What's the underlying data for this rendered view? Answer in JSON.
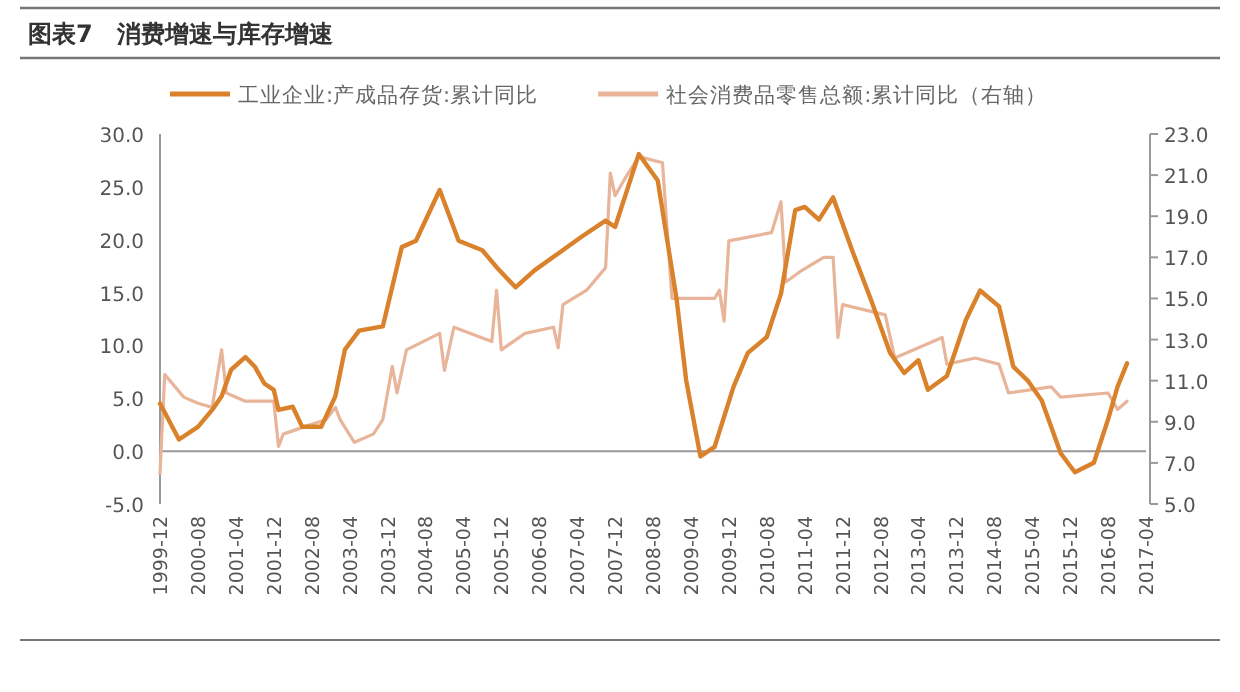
{
  "chart_data": {
    "type": "line",
    "title": "图表7　消费增速与库存增速",
    "legend": "top",
    "xlim": [
      "1999-12",
      "2017-04"
    ],
    "xticks": [
      "1999-12",
      "2000-08",
      "2001-04",
      "2001-12",
      "2002-08",
      "2003-04",
      "2003-12",
      "2004-08",
      "2005-04",
      "2005-12",
      "2006-08",
      "2007-04",
      "2007-12",
      "2008-08",
      "2009-04",
      "2009-12",
      "2010-08",
      "2011-04",
      "2011-12",
      "2012-08",
      "2013-04",
      "2013-12",
      "2014-08",
      "2015-04",
      "2015-12",
      "2016-08",
      "2017-04"
    ],
    "ylim": [
      -5,
      30
    ],
    "yticks": [
      {
        "value": -5,
        "label": "-5.0"
      },
      {
        "value": 0,
        "label": "0.0"
      },
      {
        "value": 5,
        "label": "5.0"
      },
      {
        "value": 10,
        "label": "10.0"
      },
      {
        "value": 15,
        "label": "15.0"
      },
      {
        "value": 20,
        "label": "20.0"
      },
      {
        "value": 25,
        "label": "25.0"
      },
      {
        "value": 30,
        "label": "30.0"
      }
    ],
    "y2lim": [
      5,
      23
    ],
    "y2ticks": [
      {
        "value": 5,
        "label": "5.0"
      },
      {
        "value": 7,
        "label": "7.0"
      },
      {
        "value": 9,
        "label": "9.0"
      },
      {
        "value": 11,
        "label": "11.0"
      },
      {
        "value": 13,
        "label": "13.0"
      },
      {
        "value": 15,
        "label": "15.0"
      },
      {
        "value": 17,
        "label": "17.0"
      },
      {
        "value": 19,
        "label": "19.0"
      },
      {
        "value": 21,
        "label": "21.0"
      },
      {
        "value": 23,
        "label": "23.0"
      }
    ],
    "series": [
      {
        "name": "工业企业:产成品存货:累计同比",
        "color": "#d9822b",
        "x": [
          "1999-12",
          "2000-04",
          "2000-08",
          "2000-11",
          "2001-01",
          "2001-03",
          "2001-06",
          "2001-08",
          "2001-10",
          "2001-12",
          "2002-01",
          "2002-04",
          "2002-06",
          "2002-10",
          "2003-01",
          "2003-03",
          "2003-06",
          "2003-11",
          "2004-03",
          "2004-06",
          "2004-11",
          "2005-03",
          "2005-08",
          "2005-11",
          "2006-03",
          "2006-07",
          "2006-12",
          "2007-05",
          "2007-10",
          "2007-12",
          "2008-05",
          "2008-09",
          "2009-01",
          "2009-03",
          "2009-06",
          "2009-09",
          "2010-01",
          "2010-04",
          "2010-08",
          "2010-11",
          "2011-02",
          "2011-04",
          "2011-07",
          "2011-10",
          "2012-02",
          "2012-06",
          "2012-10",
          "2013-01",
          "2013-04",
          "2013-06",
          "2013-10",
          "2014-02",
          "2014-05",
          "2014-09",
          "2014-12",
          "2015-03",
          "2015-06",
          "2015-10",
          "2016-01",
          "2016-05",
          "2016-08",
          "2016-10",
          "2016-12"
        ],
        "values": [
          4.5,
          1.1,
          2.3,
          3.9,
          5.2,
          7.7,
          8.9,
          8.0,
          6.4,
          5.8,
          3.9,
          4.2,
          2.3,
          2.3,
          5.2,
          9.6,
          11.4,
          11.8,
          19.3,
          19.9,
          24.7,
          19.9,
          19.0,
          17.4,
          15.5,
          17.1,
          18.7,
          20.3,
          21.8,
          21.2,
          28.1,
          25.6,
          14.3,
          6.7,
          -0.5,
          0.4,
          6.1,
          9.3,
          10.8,
          14.9,
          22.8,
          23.1,
          21.9,
          24.0,
          19.0,
          14.3,
          9.3,
          7.4,
          8.6,
          5.8,
          7.1,
          12.4,
          15.2,
          13.7,
          8.0,
          6.7,
          4.8,
          -0.2,
          -2.0,
          -1.1,
          3.0,
          6.1,
          8.3
        ]
      },
      {
        "name": "社会消费品零售总额:累计同比（右轴）",
        "color": "#e8b49a",
        "axis": "y2",
        "x": [
          "1999-12",
          "2000-01",
          "2000-05",
          "2000-08",
          "2000-11",
          "2001-01",
          "2001-02",
          "2001-06",
          "2001-10",
          "2001-12",
          "2002-01",
          "2002-02",
          "2002-07",
          "2002-11",
          "2003-01",
          "2003-02",
          "2003-05",
          "2003-09",
          "2003-11",
          "2004-01",
          "2004-02",
          "2004-04",
          "2004-11",
          "2004-12",
          "2005-02",
          "2005-10",
          "2005-11",
          "2005-12",
          "2006-05",
          "2006-11",
          "2006-12",
          "2007-01",
          "2007-06",
          "2007-10",
          "2007-11",
          "2007-12",
          "2008-02",
          "2008-05",
          "2008-10",
          "2008-12",
          "2009-09",
          "2009-10",
          "2009-11",
          "2009-12",
          "2010-09",
          "2010-11",
          "2010-12",
          "2011-03",
          "2011-08",
          "2011-10",
          "2011-11",
          "2011-12",
          "2012-09",
          "2012-11",
          "2013-09",
          "2013-10",
          "2014-04",
          "2014-09",
          "2014-11",
          "2015-08",
          "2015-10",
          "2016-08",
          "2016-10",
          "2016-12"
        ],
        "values": [
          6.5,
          11.3,
          10.2,
          9.9,
          9.7,
          12.5,
          10.4,
          10.0,
          10.0,
          10.0,
          7.8,
          8.4,
          8.8,
          9.1,
          9.7,
          9.1,
          8.0,
          8.4,
          9.1,
          11.7,
          10.4,
          12.5,
          13.3,
          11.5,
          13.6,
          12.9,
          15.4,
          12.5,
          13.3,
          13.6,
          12.6,
          14.7,
          15.4,
          16.5,
          21.1,
          20.0,
          20.8,
          21.9,
          21.6,
          15.0,
          15.0,
          15.4,
          13.9,
          17.8,
          18.2,
          19.7,
          15.8,
          16.3,
          17.0,
          17.0,
          13.1,
          14.7,
          14.2,
          12.1,
          13.1,
          11.8,
          12.1,
          11.8,
          10.4,
          10.7,
          10.2,
          10.4,
          9.6,
          10.0
        ]
      }
    ]
  }
}
